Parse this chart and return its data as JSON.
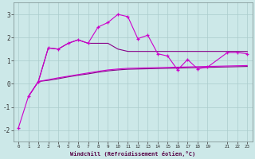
{
  "xlabel": "Windchill (Refroidissement éolien,°C)",
  "background_color": "#cce8e8",
  "grid_color": "#aacccc",
  "line_color1": "#cc00cc",
  "line_color2": "#880088",
  "ylim": [
    -2.5,
    3.5
  ],
  "xlim": [
    -0.5,
    23.5
  ],
  "yticks": [
    -2,
    -1,
    0,
    1,
    2,
    3
  ],
  "xticks": [
    0,
    1,
    2,
    3,
    4,
    5,
    6,
    7,
    8,
    9,
    10,
    11,
    12,
    13,
    14,
    15,
    16,
    17,
    18,
    19,
    21,
    22,
    23
  ],
  "main_x": [
    0,
    1,
    2,
    3,
    4,
    5,
    6,
    7,
    8,
    9,
    10,
    11,
    12,
    13,
    14,
    15,
    16,
    17,
    18,
    19,
    21,
    22,
    23
  ],
  "main_y": [
    -1.9,
    -0.55,
    0.1,
    1.55,
    1.5,
    1.75,
    1.9,
    1.75,
    2.45,
    2.65,
    3.0,
    2.9,
    1.95,
    2.1,
    1.3,
    1.2,
    0.6,
    1.05,
    0.65,
    0.72,
    1.35,
    1.35,
    1.3
  ],
  "upper_x": [
    2,
    3,
    4,
    5,
    6,
    7,
    8,
    9,
    10,
    11,
    12,
    13,
    14,
    15,
    16,
    17,
    18,
    19,
    21,
    22,
    23
  ],
  "upper_y": [
    0.1,
    1.55,
    1.5,
    1.75,
    1.9,
    1.75,
    1.75,
    1.75,
    1.5,
    1.4,
    1.4,
    1.4,
    1.4,
    1.4,
    1.4,
    1.4,
    1.4,
    1.4,
    1.4,
    1.4,
    1.4
  ],
  "lower1_x": [
    1,
    2,
    3,
    4,
    5,
    6,
    7,
    8,
    9,
    10,
    11,
    12,
    13,
    14,
    15,
    16,
    17,
    18,
    19,
    21,
    22,
    23
  ],
  "lower1_y": [
    -0.55,
    0.1,
    0.15,
    0.22,
    0.3,
    0.37,
    0.43,
    0.5,
    0.56,
    0.6,
    0.63,
    0.64,
    0.65,
    0.66,
    0.67,
    0.68,
    0.69,
    0.7,
    0.71,
    0.73,
    0.74,
    0.75
  ],
  "lower2_x": [
    1,
    2,
    3,
    4,
    5,
    6,
    7,
    8,
    9,
    10,
    11,
    12,
    13,
    14,
    15,
    16,
    17,
    18,
    19,
    21,
    22,
    23
  ],
  "lower2_y": [
    -0.55,
    0.1,
    0.18,
    0.26,
    0.33,
    0.4,
    0.47,
    0.54,
    0.6,
    0.64,
    0.67,
    0.68,
    0.69,
    0.7,
    0.71,
    0.72,
    0.73,
    0.74,
    0.75,
    0.77,
    0.78,
    0.79
  ]
}
